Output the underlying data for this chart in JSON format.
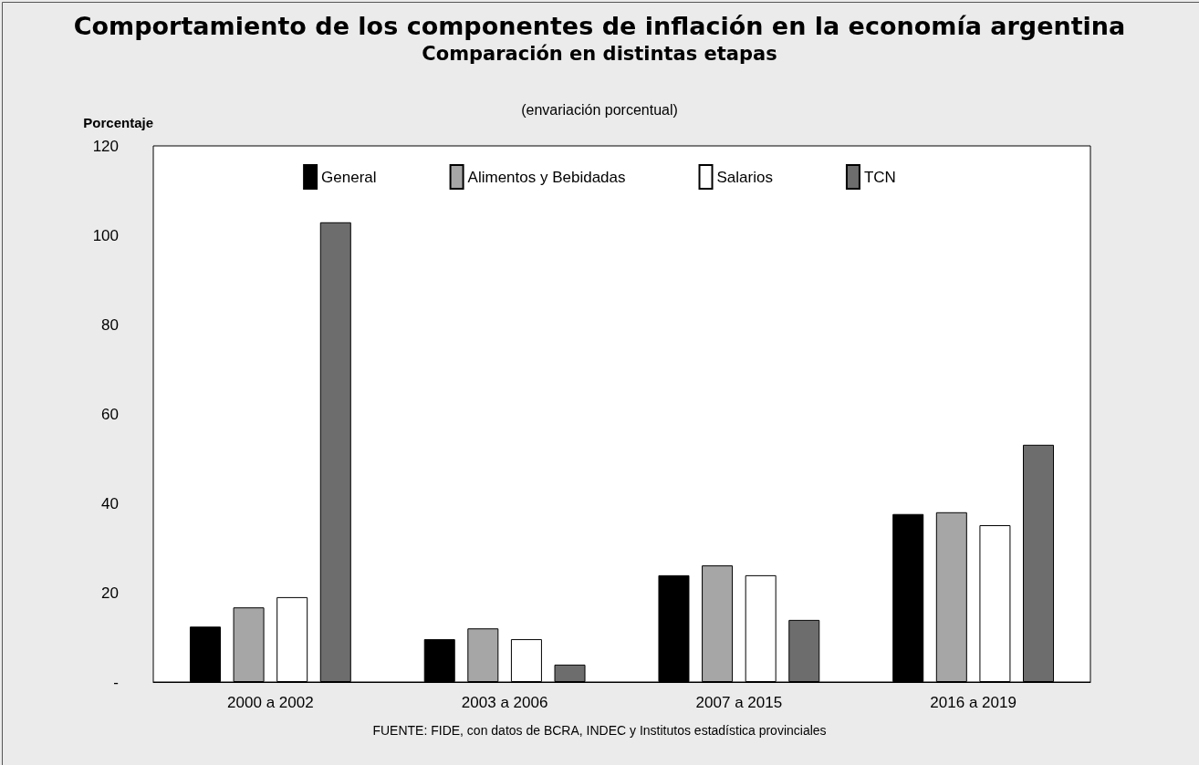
{
  "chart_data": {
    "type": "bar",
    "title": "Comportamiento de los componentes de inflación en la economía argentina",
    "subtitle": "Comparación en distintas etapas",
    "ylabel": "Porcentaje",
    "annotations": [
      "(envariación porcentual)",
      "FUENTE: FIDE, con datos de BCRA, INDEC y Institutos estadística provinciales"
    ],
    "categories": [
      "2000 a 2002",
      "2003 a 2006",
      "2007 a 2015",
      "2016 a 2019"
    ],
    "series": [
      {
        "name": "General",
        "color": "#000000",
        "values": [
          12.4,
          9.6,
          23.9,
          37.6
        ]
      },
      {
        "name": "Alimentos y Bebidadas",
        "color": "#a6a6a6",
        "values": [
          16.7,
          12.0,
          26.1,
          38.0
        ]
      },
      {
        "name": "Salarios",
        "color": "#ffffff",
        "values": [
          19.0,
          9.6,
          23.9,
          35.1
        ]
      },
      {
        "name": "TCN",
        "color": "#6d6d6d",
        "values": [
          102.9,
          3.9,
          13.9,
          53.1
        ]
      }
    ],
    "ylim": [
      0,
      120
    ],
    "yticks": [
      {
        "value": 0,
        "label": "-"
      },
      20,
      40,
      60,
      80,
      100,
      120
    ],
    "grid": false,
    "legend": "top"
  }
}
